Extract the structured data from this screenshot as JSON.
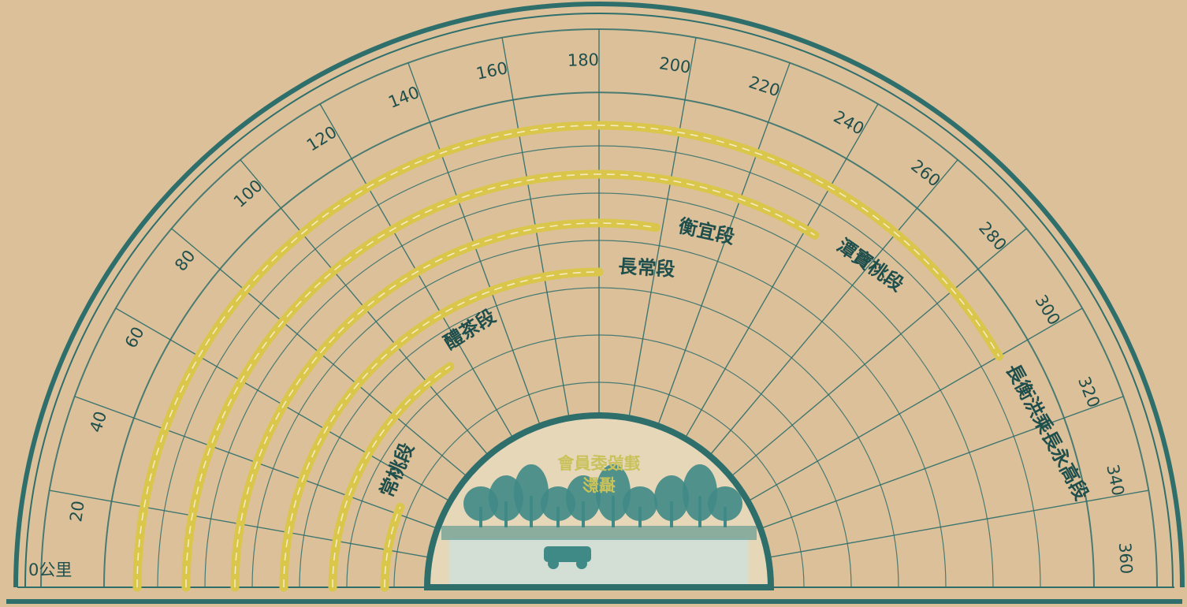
{
  "chart_data": {
    "type": "radial-distance-chart",
    "unit_label": "公里",
    "scale": {
      "min": 0,
      "max": 360,
      "step": 20,
      "tick_labels": [
        "20",
        "40",
        "60",
        "80",
        "100",
        "120",
        "140",
        "160",
        "180",
        "200",
        "220",
        "240",
        "260",
        "280",
        "300",
        "320",
        "340",
        "360"
      ]
    },
    "origin_label": "0公里",
    "segments": [
      {
        "label": "常桃段",
        "from": 0,
        "to": 44
      },
      {
        "label": "醴茶段",
        "from": 0,
        "to": 112
      },
      {
        "label": "長常段",
        "from": 0,
        "to": 180
      },
      {
        "label": "衡宜段",
        "from": 0,
        "to": 198
      },
      {
        "label": "潭寶桃段",
        "from": 0,
        "to": 243
      },
      {
        "label": "長衡洪乘長永高段",
        "from": 0,
        "to": 300
      }
    ],
    "center_caption": [
      "建設委員會",
      "攝影"
    ],
    "colors": {
      "paper": "#dcc09a",
      "ink": "#2f6f6b",
      "road": "#d9c64a",
      "road_dash": "#f4ecc0",
      "scenery": "#3f8a86"
    }
  }
}
